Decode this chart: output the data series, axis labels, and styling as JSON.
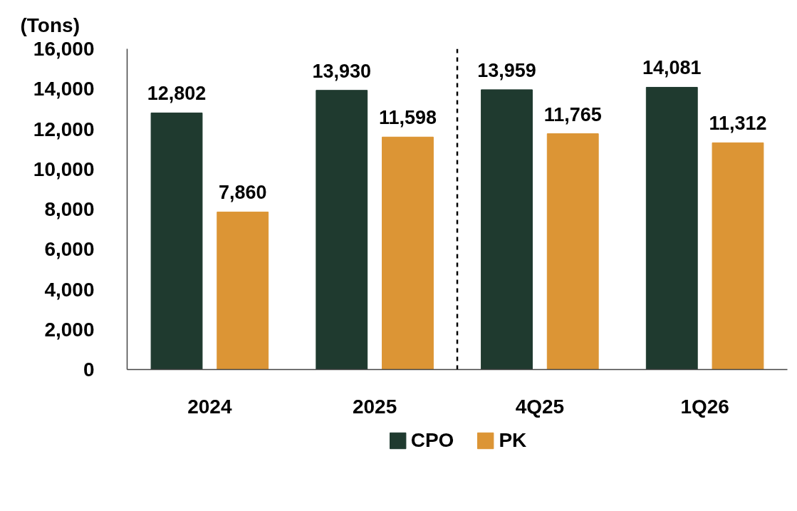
{
  "chart_data": {
    "type": "bar",
    "ylabel": "(Tons)",
    "categories": [
      "2024",
      "2025",
      "4Q25",
      "1Q26"
    ],
    "series": [
      {
        "name": "CPO",
        "color": "#1f3a2f",
        "values": [
          12802,
          13930,
          13959,
          14081
        ],
        "value_labels": [
          "12,802",
          "13,930",
          "13,959",
          "14,081"
        ]
      },
      {
        "name": "PK",
        "color": "#dc9535",
        "values": [
          7860,
          11598,
          11765,
          11312
        ],
        "value_labels": [
          "7,860",
          "11,598",
          "11,765",
          "11,312"
        ]
      }
    ],
    "ylim": [
      0,
      16000
    ],
    "yticks": [
      0,
      {
        "value": 2000,
        "label": "2,000"
      },
      {
        "value": 4000,
        "label": "4,000"
      },
      {
        "value": 6000,
        "label": "6,000"
      },
      {
        "value": 8000,
        "label": "8,000"
      },
      {
        "value": 10000,
        "label": "10,000"
      },
      {
        "value": 12000,
        "label": "12,000"
      },
      {
        "value": 14000,
        "label": "14,000"
      },
      {
        "value": 16000,
        "label": "16,000"
      }
    ],
    "grid": false,
    "legend": "bottom"
  }
}
